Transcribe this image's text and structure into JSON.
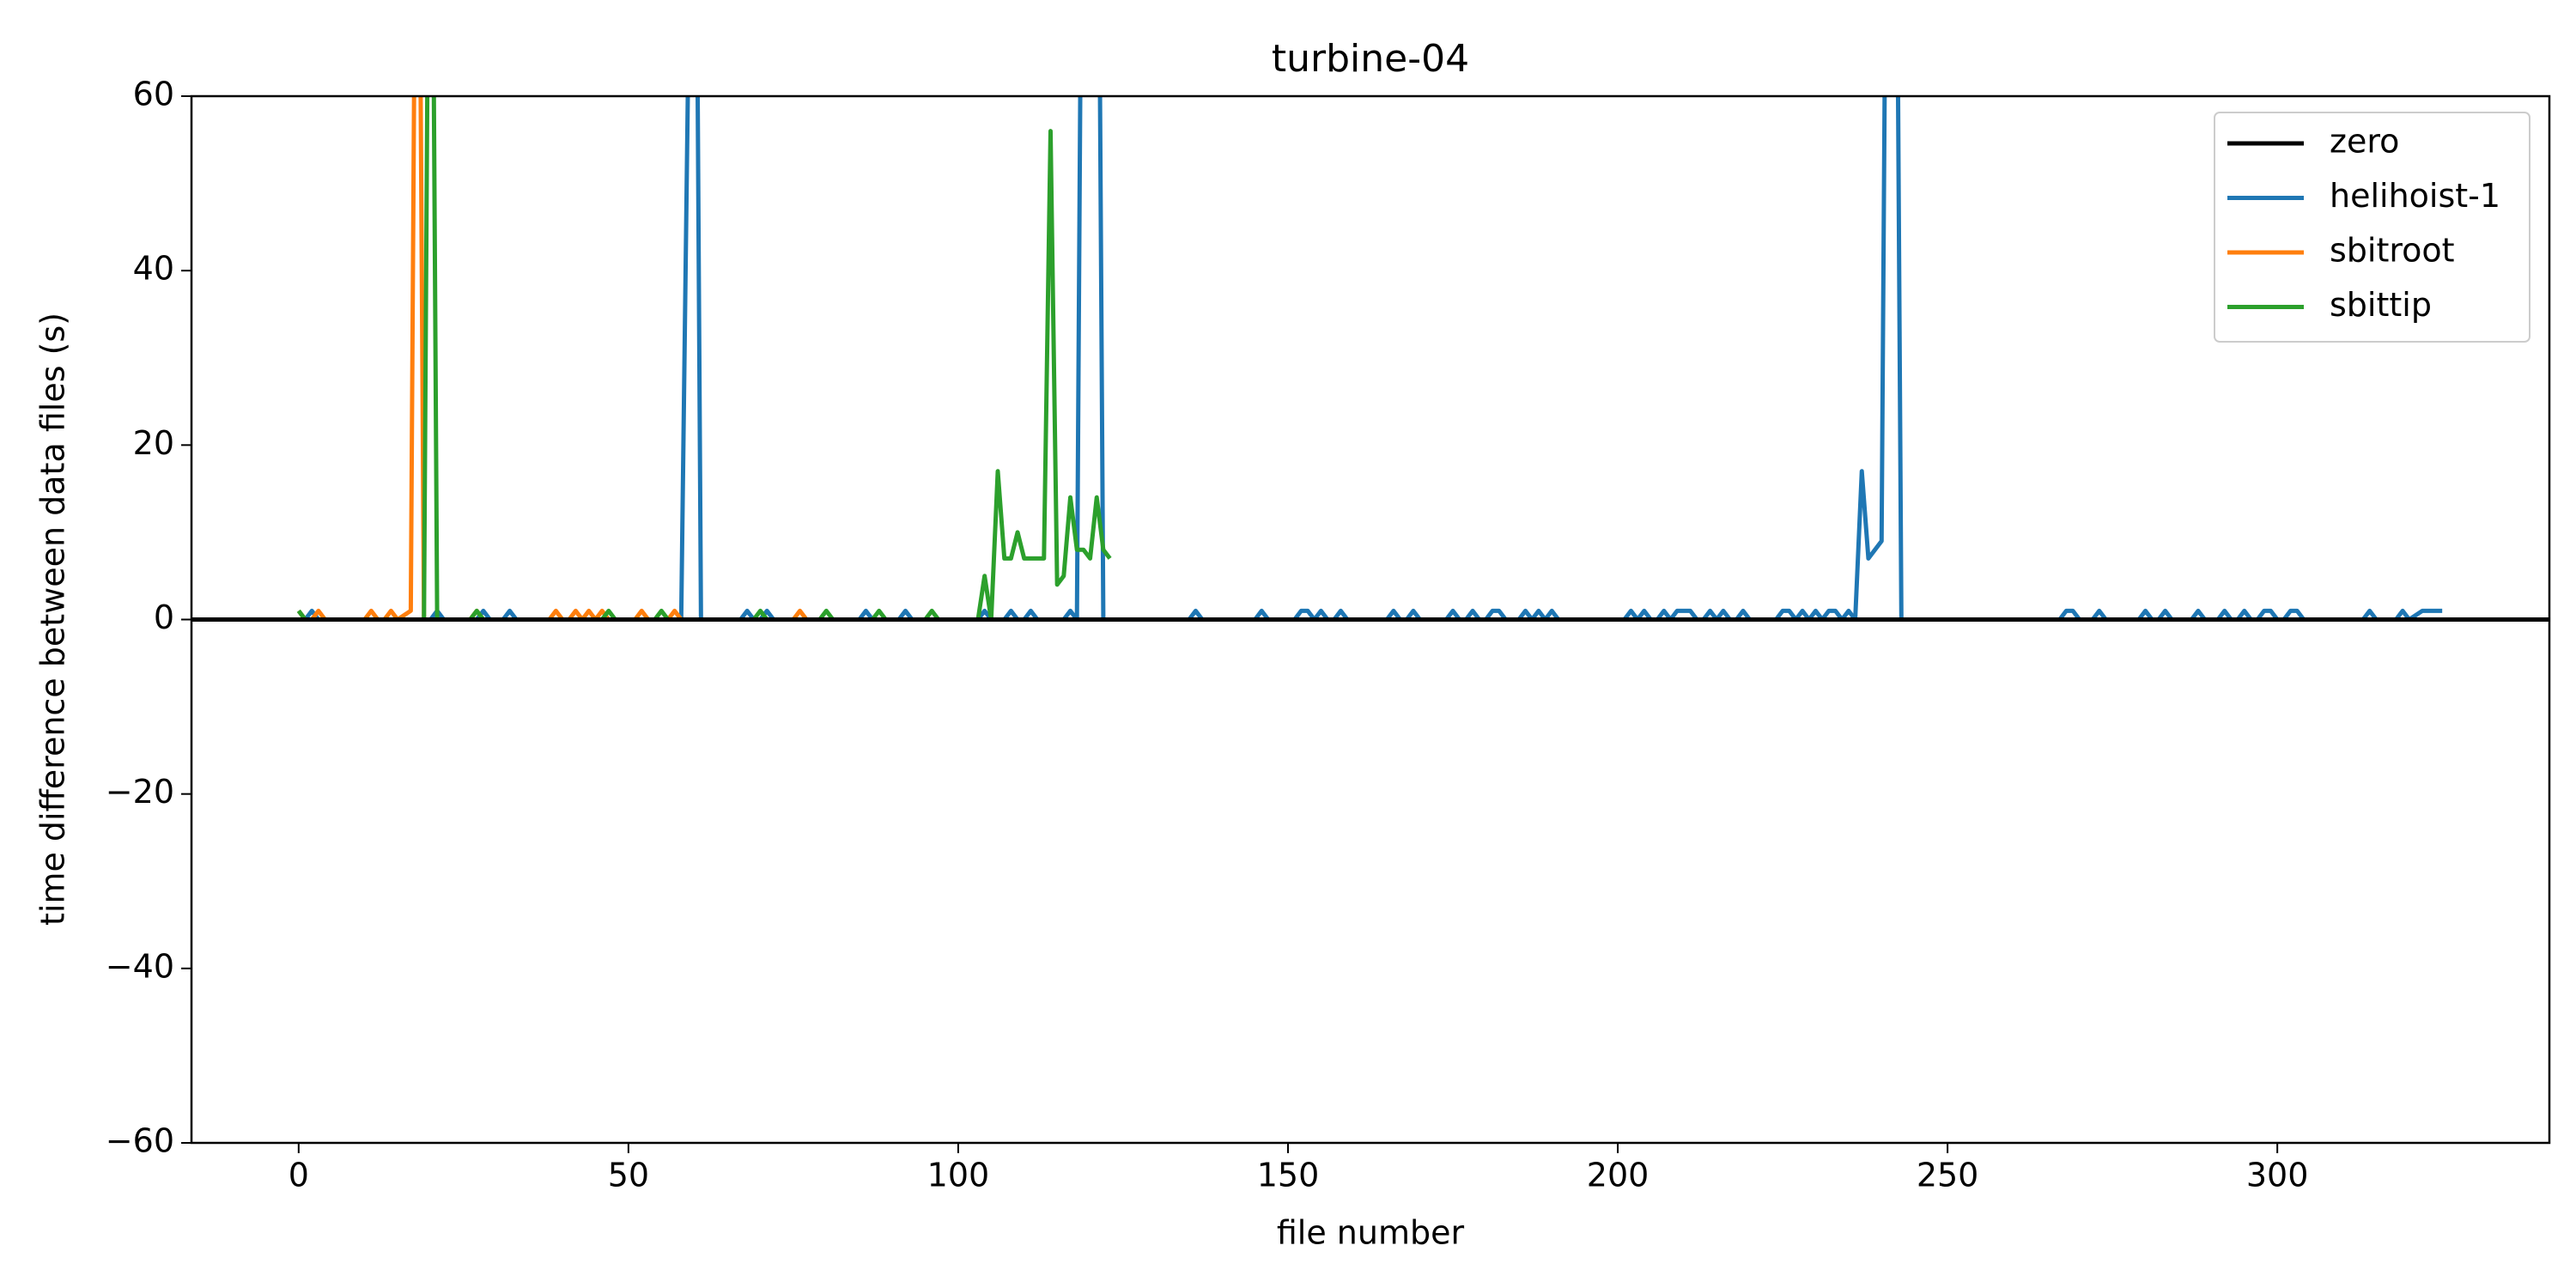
{
  "chart_data": {
    "type": "line",
    "title": "turbine-04",
    "xlabel": "file number",
    "ylabel": "time difference between data files (s)",
    "xlim": [
      -16.25,
      341.25
    ],
    "xticks": [
      0,
      50,
      100,
      150,
      200,
      250,
      300
    ],
    "ylim": [
      -60,
      60
    ],
    "yticks": [
      {
        "value": -60,
        "label": "−60"
      },
      {
        "value": -40,
        "label": "−40"
      },
      {
        "value": -20,
        "label": "−20"
      },
      0,
      20,
      40,
      60
    ],
    "legend": "upper right",
    "series": [
      {
        "name": "zero",
        "color": "#000000",
        "x": [
          -16.25,
          341.25
        ],
        "values": [
          0,
          0
        ]
      },
      {
        "name": "helihoist-1",
        "color": "#1f77b4",
        "x": [
          0,
          1,
          2,
          3,
          20,
          21,
          22,
          27,
          28,
          29,
          31,
          32,
          33,
          58,
          60,
          61,
          67,
          68,
          69,
          70,
          71,
          72,
          85,
          86,
          87,
          91,
          92,
          93,
          103,
          104,
          105,
          107,
          108,
          109,
          110,
          111,
          112,
          116,
          117,
          118,
          119,
          121,
          122,
          135,
          136,
          137,
          145,
          146,
          147,
          151,
          152,
          153,
          154,
          155,
          156,
          157,
          158,
          159,
          165,
          166,
          167,
          168,
          169,
          170,
          174,
          175,
          176,
          177,
          178,
          179,
          180,
          181,
          182,
          183,
          185,
          186,
          187,
          188,
          189,
          190,
          191,
          201,
          202,
          203,
          204,
          205,
          206,
          207,
          208,
          209,
          210,
          211,
          212,
          213,
          214,
          215,
          216,
          217,
          218,
          219,
          220,
          224,
          225,
          226,
          227,
          228,
          229,
          230,
          231,
          232,
          233,
          234,
          235,
          236,
          237,
          238,
          240,
          241,
          242,
          243,
          267,
          268,
          269,
          270,
          272,
          273,
          274,
          279,
          280,
          281,
          282,
          283,
          284,
          287,
          288,
          289,
          291,
          292,
          293,
          294,
          295,
          296,
          297,
          298,
          299,
          300,
          301,
          302,
          303,
          304,
          313,
          314,
          315,
          318,
          319,
          320,
          322,
          325
        ],
        "values": [
          1,
          0,
          1,
          0,
          0,
          1,
          0,
          0,
          1,
          0,
          0,
          1,
          0,
          0,
          120,
          0,
          0,
          1,
          0,
          0,
          1,
          0,
          0,
          1,
          0,
          0,
          1,
          0,
          0,
          1,
          0,
          0,
          1,
          0,
          0,
          1,
          0,
          0,
          1,
          0,
          120,
          120,
          0,
          0,
          1,
          0,
          0,
          1,
          0,
          0,
          1,
          1,
          0,
          1,
          0,
          0,
          1,
          0,
          0,
          1,
          0,
          0,
          1,
          0,
          0,
          1,
          0,
          0,
          1,
          0,
          0,
          1,
          1,
          0,
          0,
          1,
          0,
          1,
          0,
          1,
          0,
          0,
          1,
          0,
          1,
          0,
          0,
          1,
          0,
          1,
          1,
          1,
          0,
          0,
          1,
          0,
          1,
          0,
          0,
          1,
          0,
          0,
          1,
          1,
          0,
          1,
          0,
          1,
          0,
          1,
          1,
          0,
          1,
          0,
          17,
          7,
          9,
          120,
          120,
          0,
          0,
          1,
          1,
          0,
          0,
          1,
          0,
          0,
          1,
          0,
          0,
          1,
          0,
          0,
          1,
          0,
          0,
          1,
          0,
          0,
          1,
          0,
          0,
          1,
          1,
          0,
          0,
          1,
          1,
          0,
          0,
          1,
          0,
          0,
          1,
          0,
          1,
          1
        ]
      },
      {
        "name": "sbitroot",
        "color": "#ff7f0e",
        "x": [
          0,
          1,
          2,
          3,
          4,
          10,
          11,
          12,
          13,
          14,
          15,
          17,
          18,
          19,
          26,
          27,
          28,
          38,
          39,
          40,
          41,
          42,
          43,
          44,
          45,
          46,
          47,
          51,
          52,
          53,
          56,
          57,
          58,
          75,
          76,
          77,
          78
        ],
        "values": [
          1,
          0,
          0,
          1,
          0,
          0,
          1,
          0,
          0,
          1,
          0,
          1,
          120,
          0,
          0,
          1,
          0,
          0,
          1,
          0,
          0,
          1,
          0,
          1,
          0,
          1,
          0,
          0,
          1,
          0,
          0,
          1,
          0,
          0,
          1,
          0,
          0
        ]
      },
      {
        "name": "sbittip",
        "color": "#2ca02c",
        "x": [
          0,
          1,
          19,
          20,
          21,
          26,
          27,
          28,
          46,
          47,
          48,
          54,
          55,
          56,
          69,
          70,
          71,
          79,
          80,
          81,
          87,
          88,
          89,
          95,
          96,
          97,
          103,
          104,
          105,
          106,
          107,
          108,
          109,
          110,
          113,
          114,
          115,
          116,
          117,
          118,
          119,
          120,
          121,
          122,
          123
        ],
        "values": [
          1,
          0,
          0,
          120,
          0,
          0,
          1,
          0,
          0,
          1,
          0,
          0,
          1,
          0,
          0,
          1,
          0,
          0,
          1,
          0,
          0,
          1,
          0,
          0,
          1,
          0,
          0,
          5,
          0,
          17,
          7,
          7,
          10,
          7,
          7,
          56,
          4,
          5,
          14,
          8,
          8,
          7,
          14,
          8,
          7
        ]
      }
    ]
  }
}
